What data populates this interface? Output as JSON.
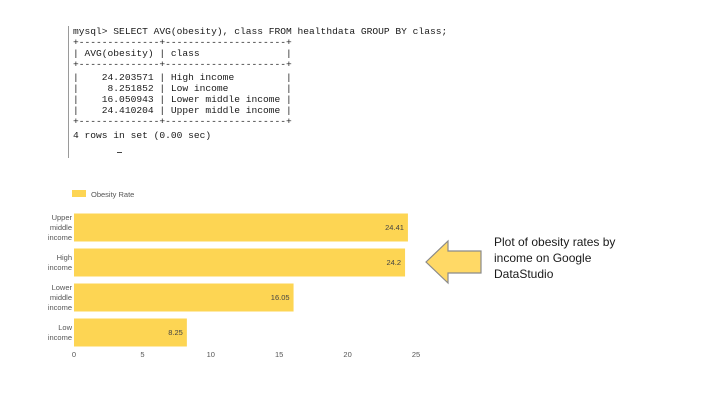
{
  "terminal": {
    "lines": [
      "mysql> SELECT AVG(obesity), class FROM healthdata GROUP BY class;",
      "+--------------+---------------------+",
      "| AVG(obesity) | class               |",
      "+--------------+---------------------+",
      "|    24.203571 | High income         |",
      "|     8.251852 | Low income          |",
      "|    16.050943 | Lower middle income |",
      "|    24.410204 | Upper middle income |",
      "+--------------+---------------------+",
      "4 rows in set (0.00 sec)"
    ]
  },
  "caption": "Plot of obesity rates by income  on Google DataStudio",
  "chart_data": {
    "type": "bar",
    "orientation": "horizontal",
    "categories": [
      [
        "Upper",
        "middle",
        "income"
      ],
      [
        "High",
        "income"
      ],
      [
        "Lower",
        "middle",
        "income"
      ],
      [
        "Low",
        "income"
      ]
    ],
    "series": [
      {
        "name": "Obesity Rate",
        "values": [
          24.41,
          24.2,
          16.05,
          8.25
        ],
        "labels": [
          "24.41",
          "24.2",
          "16.05",
          "8.25"
        ]
      }
    ],
    "xlim": [
      0,
      25
    ],
    "xticks": [
      0,
      5,
      10,
      15,
      20,
      25
    ],
    "legend": "top-left",
    "grid": false,
    "colors": {
      "bar": "#fdd553",
      "arrow_fill": "#ffd966",
      "arrow_stroke": "#8a8a8a"
    }
  }
}
